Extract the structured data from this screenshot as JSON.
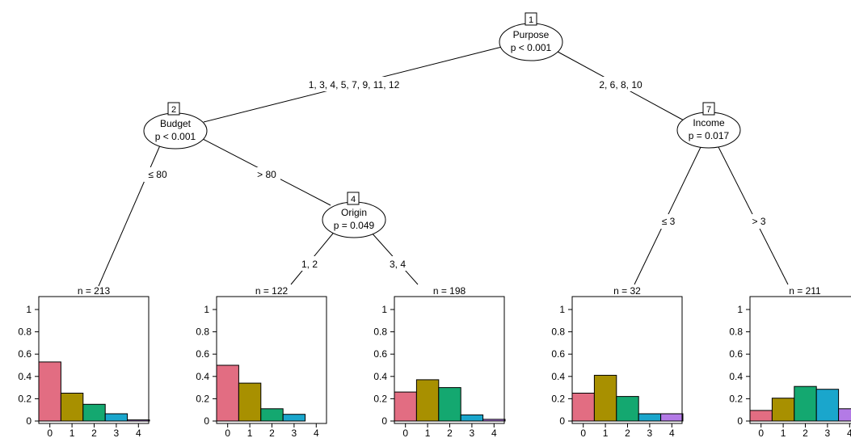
{
  "colors": {
    "class_0": "#e26d82",
    "class_1": "#a89000",
    "class_2": "#14a870",
    "class_3": "#1aa6cc",
    "class_4": "#b37ae6"
  },
  "nodes": [
    {
      "id": "1",
      "variable": "Purpose",
      "pvalue": "p < 0.001"
    },
    {
      "id": "2",
      "variable": "Budget",
      "pvalue": "p < 0.001"
    },
    {
      "id": "4",
      "variable": "Origin",
      "pvalue": "p = 0.049"
    },
    {
      "id": "7",
      "variable": "Income",
      "pvalue": "p = 0.017"
    }
  ],
  "edge_labels": [
    "1, 3, 4, 5, 7, 9, 11, 12",
    "2, 6, 8, 10",
    "≤ 80",
    "> 80",
    "1, 2",
    "3, 4",
    "≤ 3",
    "> 3"
  ],
  "chart_data": {
    "type": "bar",
    "categories": [
      "0",
      "1",
      "2",
      "3",
      "4"
    ],
    "ylim": [
      0,
      1
    ],
    "yticks": [
      "0",
      "0.2",
      "0.4",
      "0.6",
      "0.8",
      "1"
    ],
    "panels": [
      {
        "n_label": "n = 213",
        "values": [
          0.53,
          0.25,
          0.15,
          0.065,
          0.01
        ]
      },
      {
        "n_label": "n = 122",
        "values": [
          0.5,
          0.34,
          0.11,
          0.06,
          0.0
        ]
      },
      {
        "n_label": "n = 198",
        "values": [
          0.26,
          0.37,
          0.3,
          0.055,
          0.015
        ]
      },
      {
        "n_label": "n = 32",
        "values": [
          0.25,
          0.41,
          0.22,
          0.065,
          0.065
        ]
      },
      {
        "n_label": "n = 211",
        "values": [
          0.095,
          0.205,
          0.31,
          0.285,
          0.11
        ]
      }
    ]
  }
}
